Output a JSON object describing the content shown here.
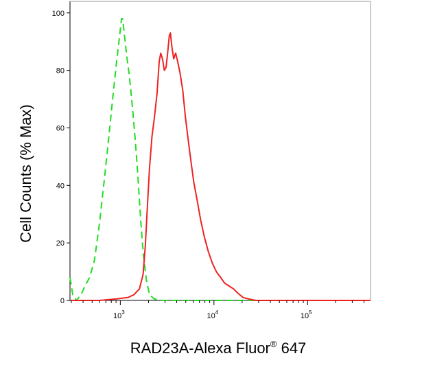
{
  "chart_data": {
    "type": "line",
    "title": "",
    "xlabel": "RAD23A-Alexa Fluor",
    "xlabel_mark": "®",
    "xlabel_suffix": " 647",
    "ylabel": "Cell Counts (% Max)",
    "xscale": "log",
    "xlim": [
      290,
      470000
    ],
    "ylim": [
      0,
      104
    ],
    "x_ticks": [
      {
        "base": "10",
        "exp": "3",
        "value": 1000
      },
      {
        "base": "10",
        "exp": "4",
        "value": 10000
      },
      {
        "base": "10",
        "exp": "5",
        "value": 100000
      }
    ],
    "y_ticks": [
      0,
      20,
      40,
      60,
      80,
      100
    ],
    "grid": false,
    "legend": "none",
    "series": [
      {
        "color": "#22dd22",
        "style": "dashed",
        "points": [
          [
            290,
            8
          ],
          [
            310,
            2
          ],
          [
            340,
            0
          ],
          [
            380,
            2
          ],
          [
            420,
            5
          ],
          [
            470,
            8
          ],
          [
            530,
            14
          ],
          [
            600,
            27
          ],
          [
            680,
            43
          ],
          [
            760,
            58
          ],
          [
            840,
            72
          ],
          [
            920,
            84
          ],
          [
            990,
            93
          ],
          [
            1030,
            98
          ],
          [
            1060,
            98
          ],
          [
            1100,
            93
          ],
          [
            1170,
            85
          ],
          [
            1250,
            78
          ],
          [
            1350,
            67
          ],
          [
            1450,
            55
          ],
          [
            1550,
            42
          ],
          [
            1650,
            28
          ],
          [
            1760,
            16
          ],
          [
            1900,
            7
          ],
          [
            2050,
            2
          ],
          [
            2300,
            0.5
          ],
          [
            2800,
            0
          ],
          [
            5000,
            0
          ],
          [
            20000,
            0
          ],
          [
            100000,
            0
          ],
          [
            470000,
            0
          ]
        ]
      },
      {
        "color": "#ee2222",
        "style": "solid",
        "points": [
          [
            300,
            0
          ],
          [
            600,
            0
          ],
          [
            900,
            0.5
          ],
          [
            1200,
            1
          ],
          [
            1400,
            2
          ],
          [
            1600,
            4
          ],
          [
            1750,
            9
          ],
          [
            1850,
            19
          ],
          [
            1950,
            33
          ],
          [
            2050,
            46
          ],
          [
            2180,
            57
          ],
          [
            2320,
            64
          ],
          [
            2470,
            72
          ],
          [
            2600,
            83
          ],
          [
            2700,
            86
          ],
          [
            2820,
            84
          ],
          [
            2950,
            80
          ],
          [
            3080,
            81
          ],
          [
            3200,
            86
          ],
          [
            3330,
            92
          ],
          [
            3430,
            93
          ],
          [
            3560,
            88
          ],
          [
            3720,
            84
          ],
          [
            3900,
            86
          ],
          [
            4100,
            83
          ],
          [
            4350,
            79
          ],
          [
            4650,
            73
          ],
          [
            4950,
            64
          ],
          [
            5300,
            56
          ],
          [
            5700,
            48
          ],
          [
            6100,
            41
          ],
          [
            6600,
            35
          ],
          [
            7200,
            28
          ],
          [
            7900,
            22
          ],
          [
            8700,
            17
          ],
          [
            9600,
            13
          ],
          [
            10600,
            10
          ],
          [
            11800,
            8
          ],
          [
            13000,
            6
          ],
          [
            14500,
            5
          ],
          [
            16200,
            4
          ],
          [
            18000,
            2.5
          ],
          [
            20500,
            1
          ],
          [
            23500,
            0.5
          ],
          [
            28000,
            0
          ],
          [
            50000,
            0
          ],
          [
            150000,
            0
          ],
          [
            470000,
            0
          ]
        ]
      }
    ]
  }
}
